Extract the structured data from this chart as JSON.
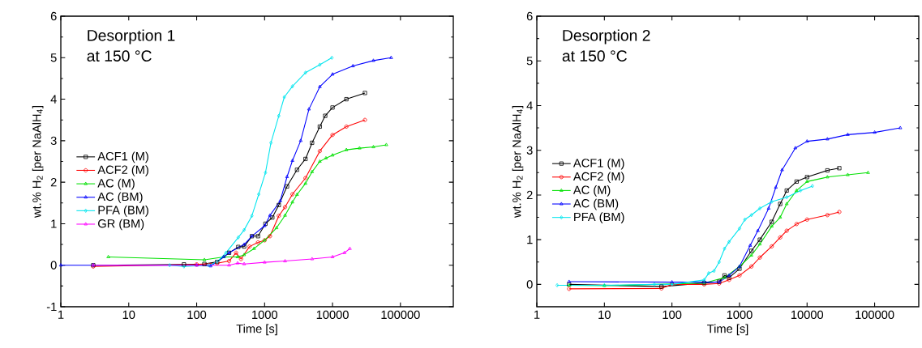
{
  "chart_data": [
    {
      "type": "line",
      "annotations": [
        "Desorption 1",
        "at 150 °C"
      ],
      "xlabel": "Time [s]",
      "ylabel": "wt.% H$_{2}$ [per NaAlH$_{4}$]",
      "log": "x",
      "xlim": [
        1,
        600000
      ],
      "ylim": [
        -1,
        6
      ],
      "xticks": [
        1,
        10,
        100,
        1000,
        10000,
        100000
      ],
      "yticks": [
        -1,
        0,
        1,
        2,
        3,
        4,
        5,
        6
      ],
      "grid": false,
      "legend": "left",
      "line_style": "solid",
      "series": [
        {
          "name": "ACF1 (M)",
          "color": "#000000",
          "marker": "square",
          "x": [
            3,
            65,
            130,
            200,
            300,
            410,
            500,
            650,
            800,
            1030,
            1300,
            1620,
            2140,
            3000,
            4000,
            5000,
            6500,
            7800,
            10000,
            16000,
            30000
          ],
          "values": [
            0,
            0.02,
            0.03,
            0.08,
            0.3,
            0.44,
            0.45,
            0.7,
            0.7,
            1.0,
            1.15,
            1.45,
            1.9,
            2.3,
            2.56,
            2.95,
            3.34,
            3.6,
            3.8,
            4.0,
            4.15
          ]
        },
        {
          "name": "ACF2 (M)",
          "color": "#ff0000",
          "marker": "circle",
          "x": [
            3,
            100,
            200,
            300,
            380,
            450,
            600,
            800,
            1000,
            1200,
            1620,
            2000,
            2570,
            4000,
            6500,
            10000,
            16000,
            30000
          ],
          "values": [
            -0.03,
            0.02,
            0.05,
            0.1,
            0.3,
            0.15,
            0.45,
            0.55,
            0.6,
            0.7,
            1.19,
            1.4,
            1.71,
            2.1,
            2.75,
            3.14,
            3.34,
            3.5
          ]
        },
        {
          "name": "AC (M)",
          "color": "#00e000",
          "marker": "triangle",
          "x": [
            5,
            130,
            250,
            400,
            500,
            700,
            1000,
            1500,
            2000,
            2570,
            3000,
            4000,
            5000,
            6500,
            8000,
            10000,
            16000,
            25000,
            40000,
            62000
          ],
          "values": [
            0.2,
            0.13,
            0.2,
            0.2,
            0.25,
            0.4,
            0.6,
            0.9,
            1.2,
            1.52,
            1.7,
            1.97,
            2.25,
            2.5,
            2.58,
            2.65,
            2.78,
            2.82,
            2.85,
            2.9
          ]
        },
        {
          "name": "AC (BM)",
          "color": "#0000ff",
          "marker": "triangle",
          "x": [
            1,
            3,
            100,
            160,
            250,
            300,
            500,
            650,
            1000,
            1200,
            1700,
            2140,
            2570,
            3400,
            4500,
            6500,
            10000,
            20000,
            40000,
            73000
          ],
          "values": [
            0,
            0,
            0,
            -0.02,
            0.2,
            0.3,
            0.5,
            0.7,
            0.95,
            1.2,
            1.55,
            2.13,
            2.52,
            3.0,
            3.76,
            4.3,
            4.6,
            4.8,
            4.93,
            5.0
          ]
        },
        {
          "name": "PFA (BM)",
          "color": "#00e5ee",
          "marker": "diamond",
          "x": [
            40,
            65,
            150,
            200,
            270,
            410,
            500,
            650,
            820,
            1030,
            1240,
            1620,
            1950,
            2570,
            4000,
            6500,
            9800
          ],
          "values": [
            0,
            -0.03,
            0,
            0.08,
            0.3,
            0.67,
            0.85,
            1.19,
            1.71,
            2.23,
            2.95,
            3.6,
            4.05,
            4.31,
            4.64,
            4.83,
            5.0
          ]
        },
        {
          "name": "GR (BM)",
          "color": "#ff00ff",
          "marker": "triangle",
          "x": [
            3,
            100,
            300,
            400,
            500,
            1000,
            2000,
            5000,
            10000,
            15000,
            18000
          ],
          "values": [
            0,
            0,
            0,
            0.05,
            0.03,
            0.07,
            0.1,
            0.15,
            0.2,
            0.3,
            0.4
          ]
        }
      ]
    },
    {
      "type": "line",
      "annotations": [
        "Desorption 2",
        "at 150 °C"
      ],
      "xlabel": "Time [s]",
      "ylabel": "wt.% H$_{2}$ [per NaAlH$_{4}$]",
      "log": "x",
      "xlim": [
        1,
        450000
      ],
      "ylim": [
        -0.5,
        6
      ],
      "xticks": [
        1,
        10,
        100,
        1000,
        10000,
        100000
      ],
      "yticks": [
        0,
        1,
        2,
        3,
        4,
        5,
        6
      ],
      "grid": false,
      "legend": "left",
      "line_style": "solid",
      "series": [
        {
          "name": "ACF1 (M)",
          "color": "#000000",
          "marker": "square",
          "x": [
            3,
            70,
            300,
            500,
            600,
            700,
            1000,
            1500,
            2000,
            3000,
            4000,
            5000,
            7000,
            10000,
            20000,
            30000
          ],
          "values": [
            0,
            -0.05,
            0.03,
            0.06,
            0.2,
            0.15,
            0.35,
            0.75,
            1.0,
            1.4,
            1.8,
            2.1,
            2.3,
            2.4,
            2.55,
            2.6
          ]
        },
        {
          "name": "ACF2 (M)",
          "color": "#ff0000",
          "marker": "circle",
          "x": [
            3,
            70,
            100,
            300,
            500,
            700,
            1000,
            1500,
            2000,
            3000,
            4000,
            5000,
            7000,
            10000,
            20000,
            30000
          ],
          "values": [
            -0.1,
            -0.09,
            0,
            0,
            0.02,
            0.1,
            0.2,
            0.4,
            0.6,
            0.85,
            1.05,
            1.2,
            1.35,
            1.45,
            1.55,
            1.62
          ]
        },
        {
          "name": "AC (M)",
          "color": "#00e000",
          "marker": "triangle",
          "x": [
            3,
            10,
            300,
            600,
            1000,
            1500,
            2000,
            3000,
            4000,
            5000,
            7000,
            10000,
            20000,
            40000,
            80000
          ],
          "values": [
            -0.02,
            -0.03,
            0.03,
            0.15,
            0.4,
            0.65,
            0.9,
            1.3,
            1.5,
            1.8,
            2.1,
            2.3,
            2.4,
            2.45,
            2.5
          ]
        },
        {
          "name": "AC (BM)",
          "color": "#0000ff",
          "marker": "triangle",
          "x": [
            3,
            100,
            300,
            500,
            700,
            1000,
            1440,
            1870,
            2700,
            3450,
            4270,
            6700,
            10000,
            20000,
            40000,
            100000,
            240000
          ],
          "values": [
            0.06,
            0.05,
            0.05,
            0.05,
            0.2,
            0.4,
            0.87,
            1.2,
            1.7,
            2.17,
            2.56,
            3.05,
            3.2,
            3.25,
            3.35,
            3.4,
            3.5
          ]
        },
        {
          "name": "PFA (BM)",
          "color": "#00e5ee",
          "marker": "diamond",
          "x": [
            2,
            10,
            55,
            100,
            300,
            350,
            420,
            500,
            600,
            700,
            1000,
            1200,
            1500,
            2000,
            3000,
            5000,
            8000,
            12000
          ],
          "values": [
            -0.02,
            -0.02,
            0,
            0,
            0.1,
            0.25,
            0.3,
            0.5,
            0.8,
            0.95,
            1.25,
            1.45,
            1.55,
            1.7,
            1.85,
            1.95,
            2.1,
            2.2
          ]
        }
      ]
    }
  ]
}
